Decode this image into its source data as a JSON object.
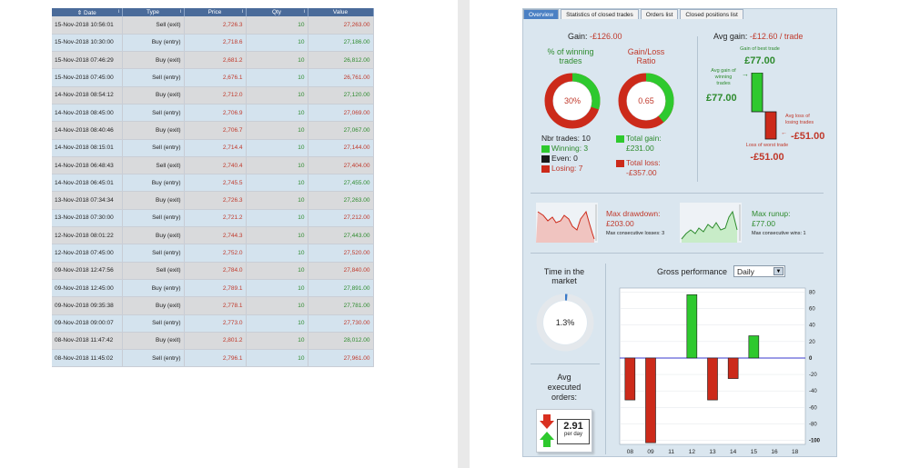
{
  "table": {
    "headers": [
      "Date",
      "Type",
      "Price",
      "Qty",
      "Value"
    ],
    "rows": [
      {
        "date": "15-Nov-2018 10:56:01",
        "type": "Sell (exit)",
        "price": "2,726.3",
        "qty": "10",
        "value": "27,263.00",
        "value_color": "red"
      },
      {
        "date": "15-Nov-2018 10:30:00",
        "type": "Buy (entry)",
        "price": "2,718.6",
        "qty": "10",
        "value": "27,186.00",
        "value_color": "green"
      },
      {
        "date": "15-Nov-2018 07:46:29",
        "type": "Buy (exit)",
        "price": "2,681.2",
        "qty": "10",
        "value": "26,812.00",
        "value_color": "green"
      },
      {
        "date": "15-Nov-2018 07:45:00",
        "type": "Sell (entry)",
        "price": "2,676.1",
        "qty": "10",
        "value": "26,761.00",
        "value_color": "red"
      },
      {
        "date": "14-Nov-2018 08:54:12",
        "type": "Buy (exit)",
        "price": "2,712.0",
        "qty": "10",
        "value": "27,120.00",
        "value_color": "green"
      },
      {
        "date": "14-Nov-2018 08:45:00",
        "type": "Sell (entry)",
        "price": "2,706.9",
        "qty": "10",
        "value": "27,069.00",
        "value_color": "red"
      },
      {
        "date": "14-Nov-2018 08:40:46",
        "type": "Buy (exit)",
        "price": "2,706.7",
        "qty": "10",
        "value": "27,067.00",
        "value_color": "green"
      },
      {
        "date": "14-Nov-2018 08:15:01",
        "type": "Sell (entry)",
        "price": "2,714.4",
        "qty": "10",
        "value": "27,144.00",
        "value_color": "red"
      },
      {
        "date": "14-Nov-2018 06:48:43",
        "type": "Sell (exit)",
        "price": "2,740.4",
        "qty": "10",
        "value": "27,404.00",
        "value_color": "red"
      },
      {
        "date": "14-Nov-2018 06:45:01",
        "type": "Buy (entry)",
        "price": "2,745.5",
        "qty": "10",
        "value": "27,455.00",
        "value_color": "green"
      },
      {
        "date": "13-Nov-2018 07:34:34",
        "type": "Buy (exit)",
        "price": "2,726.3",
        "qty": "10",
        "value": "27,263.00",
        "value_color": "green"
      },
      {
        "date": "13-Nov-2018 07:30:00",
        "type": "Sell (entry)",
        "price": "2,721.2",
        "qty": "10",
        "value": "27,212.00",
        "value_color": "red"
      },
      {
        "date": "12-Nov-2018 08:01:22",
        "type": "Buy (exit)",
        "price": "2,744.3",
        "qty": "10",
        "value": "27,443.00",
        "value_color": "green"
      },
      {
        "date": "12-Nov-2018 07:45:00",
        "type": "Sell (entry)",
        "price": "2,752.0",
        "qty": "10",
        "value": "27,520.00",
        "value_color": "red"
      },
      {
        "date": "09-Nov-2018 12:47:56",
        "type": "Sell (exit)",
        "price": "2,784.0",
        "qty": "10",
        "value": "27,840.00",
        "value_color": "red"
      },
      {
        "date": "09-Nov-2018 12:45:00",
        "type": "Buy (entry)",
        "price": "2,789.1",
        "qty": "10",
        "value": "27,891.00",
        "value_color": "green"
      },
      {
        "date": "09-Nov-2018 09:35:38",
        "type": "Buy (exit)",
        "price": "2,778.1",
        "qty": "10",
        "value": "27,781.00",
        "value_color": "green"
      },
      {
        "date": "09-Nov-2018 09:00:07",
        "type": "Sell (entry)",
        "price": "2,773.0",
        "qty": "10",
        "value": "27,730.00",
        "value_color": "red"
      },
      {
        "date": "08-Nov-2018 11:47:42",
        "type": "Buy (exit)",
        "price": "2,801.2",
        "qty": "10",
        "value": "28,012.00",
        "value_color": "green"
      },
      {
        "date": "08-Nov-2018 11:45:02",
        "type": "Sell (entry)",
        "price": "2,796.1",
        "qty": "10",
        "value": "27,961.00",
        "value_color": "red"
      }
    ]
  },
  "tabs": [
    "Overview",
    "Statistics of closed trades",
    "Orders list",
    "Closed positions list"
  ],
  "gain": {
    "label": "Gain:",
    "value": "-£126.00"
  },
  "avg_gain": {
    "label": "Avg gain:",
    "value": "-£12.60 / trade"
  },
  "winning": {
    "title_l1": "% of winning",
    "title_l2": "trades",
    "value": "30%",
    "fraction": 0.3
  },
  "gain_loss": {
    "title_l1": "Gain/Loss",
    "title_l2": "Ratio",
    "value": "0.65",
    "fraction": 0.39
  },
  "nbr_trades": {
    "label": "Nbr trades: 10",
    "winning": "Winning: 3",
    "even": "Even: 0",
    "losing": "Losing: 7"
  },
  "totals": {
    "gain_label": "Total gain:",
    "gain_value": "£231.00",
    "loss_label": "Total loss:",
    "loss_value": "-£357.00"
  },
  "best": {
    "label": "Gain of best trade",
    "value": "£77.00",
    "avg_win_l1": "Avg gain of",
    "avg_win_l2": "winning",
    "avg_win_l3": "trades",
    "avg_win_value": "£77.00",
    "avg_loss_l1": "Avg loss of",
    "avg_loss_l2": "losing trades",
    "avg_loss_value": "-£51.00",
    "worst_label": "Loss of worst trade",
    "worst_value": "-£51.00"
  },
  "drawdown": {
    "label": "Max drawdown:",
    "value": "£203.00",
    "sub": "Max consecutive losses: 3"
  },
  "runup": {
    "label": "Max runup:",
    "value": "£77.00",
    "sub": "Max consecutive wins: 1"
  },
  "time_market": {
    "title_l1": "Time in the",
    "title_l2": "market",
    "value": "1.3%",
    "fraction": 0.013
  },
  "avg_orders": {
    "title_l1": "Avg",
    "title_l2": "executed",
    "title_l3": "orders:",
    "value": "2.91",
    "unit": "per day"
  },
  "gross": {
    "label": "Gross performance",
    "period": "Daily"
  },
  "chart_data": {
    "type": "bar",
    "title": "Gross performance",
    "categories": [
      "08",
      "09",
      "11",
      "12",
      "13",
      "14",
      "15",
      "16",
      "18"
    ],
    "values": [
      -51,
      -103,
      0,
      77,
      -51,
      -25,
      27,
      0,
      0
    ],
    "yticks": [
      "80",
      "60",
      "40",
      "20",
      "0",
      "-20",
      "-40",
      "-60",
      "-80",
      "-100"
    ],
    "ylim": [
      -105,
      85
    ],
    "positive_color": "#2ec92e",
    "negative_color": "#cc2a1a"
  },
  "colors": {
    "green": "#2ec92e",
    "red": "#cc2a1a",
    "blue_tab": "#4a80c4"
  }
}
